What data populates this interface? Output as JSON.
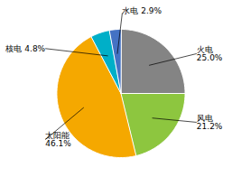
{
  "chart_data": {
    "type": "pie",
    "categories": [
      "火电",
      "风电",
      "太阳能",
      "核电",
      "水电"
    ],
    "values": [
      25.0,
      21.2,
      46.1,
      4.8,
      2.9
    ],
    "value_labels": [
      "25.0%",
      "21.2%",
      "46.1%",
      "4.8%",
      "2.9%"
    ],
    "colors": [
      "#848484",
      "#8dc63f",
      "#f5a800",
      "#00afc8",
      "#4472c4"
    ]
  }
}
